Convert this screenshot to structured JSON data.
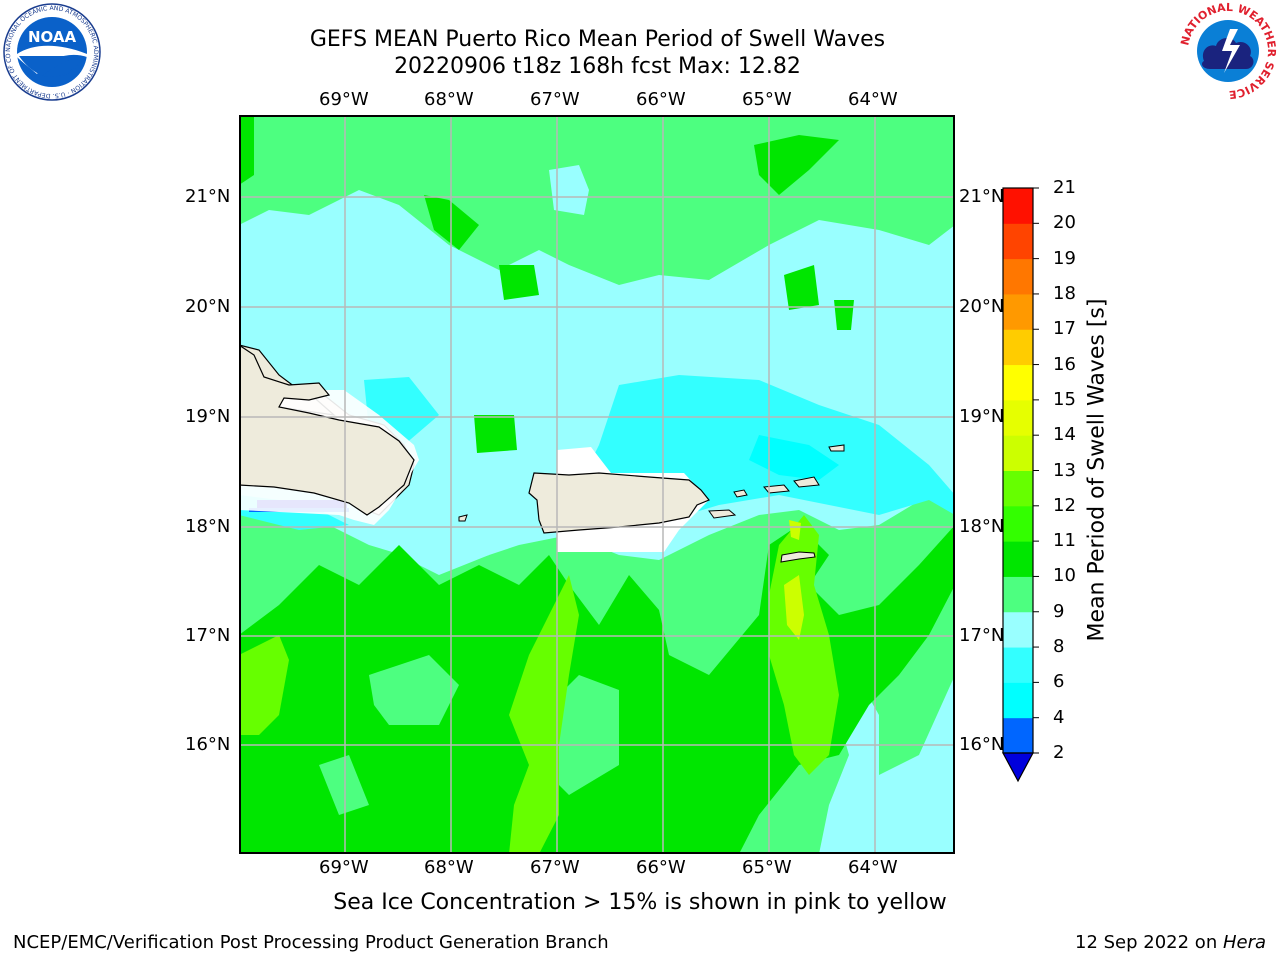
{
  "title": {
    "line1": "GEFS MEAN Puerto Rico Mean Period of Swell Waves",
    "line2": "20220906 t18z 168h fcst   Max: 12.82"
  },
  "map": {
    "lon_labels": [
      "69°W",
      "68°W",
      "67°W",
      "66°W",
      "65°W",
      "64°W"
    ],
    "lat_labels": [
      "21°N",
      "20°N",
      "19°N",
      "18°N",
      "17°N",
      "16°N"
    ],
    "land_color": "#eeebdc",
    "gridline_color": "#b8b8b8"
  },
  "colorbar": {
    "label": "Mean Period of Swell Waves [s]",
    "ticks": [
      "2",
      "4",
      "6",
      "8",
      "9",
      "10",
      "11",
      "12",
      "13",
      "14",
      "15",
      "16",
      "17",
      "18",
      "19",
      "20",
      "21"
    ],
    "colors": [
      "#0066ff",
      "#00ffff",
      "#33ffff",
      "#99ffff",
      "#4dff80",
      "#00e600",
      "#33ff00",
      "#66ff00",
      "#ccff00",
      "#e6ff00",
      "#ffff00",
      "#ffcc00",
      "#ff9900",
      "#ff7700",
      "#ff4400",
      "#ff1100"
    ],
    "under_color": "#0000dd"
  },
  "caption": "Sea Ice Concentration > 15% is shown in pink to yellow",
  "footer": {
    "left": "NCEP/EMC/Verification Post Processing Product Generation Branch",
    "right_prefix": "12 Sep 2022 on ",
    "right_machine": "Hera"
  },
  "logos": {
    "noaa_text": "NOAA",
    "noaa_ring_text": "NATIONAL OCEANIC AND ATMOSPHERIC ADMINISTRATION · U.S. DEPARTMENT OF COMMERCE",
    "nws_ring_text": "NATIONAL WEATHER SERVICE"
  }
}
